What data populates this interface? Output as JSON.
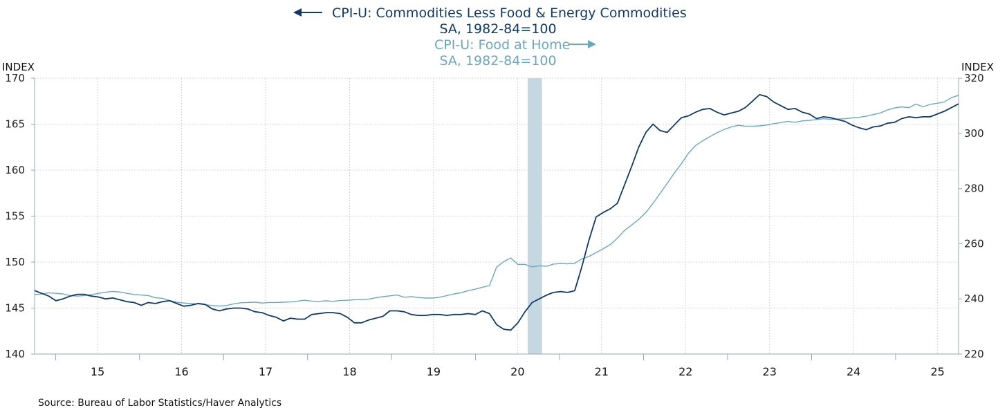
{
  "chart_data": {
    "type": "line",
    "colors": {
      "series1": "#0f3a68",
      "series2": "#6aa8c2",
      "recession": "#c5d8e2",
      "grid": "#d4d4d4",
      "axis": "#9aa4b0"
    },
    "legend": {
      "series1_line1": "CPI-U: Commodities Less Food & Energy Commodities",
      "series1_line2": "SA, 1982-84=100",
      "series2_line1": "CPI-U: Food at Home",
      "series2_line2": "SA, 1982-84=100"
    },
    "left_axis": {
      "unit": "INDEX",
      "min": 140,
      "max": 170,
      "ticks": [
        "140",
        "145",
        "150",
        "155",
        "160",
        "165",
        "170"
      ]
    },
    "right_axis": {
      "unit": "INDEX",
      "min": 220,
      "max": 320,
      "ticks": [
        "220",
        "240",
        "260",
        "280",
        "300",
        "320"
      ]
    },
    "x_axis": {
      "start": 2014.25,
      "end": 2025.25,
      "tick_labels": [
        "15",
        "16",
        "17",
        "18",
        "19",
        "20",
        "21",
        "22",
        "23",
        "24",
        "25"
      ]
    },
    "recession": {
      "start": 2020.12,
      "end": 2020.29
    },
    "series": [
      {
        "name": "CPI-U: Commodities Less Food & Energy Commodities",
        "axis": "left",
        "values": [
          146.9,
          146.6,
          146.3,
          145.8,
          146.0,
          146.3,
          146.5,
          146.5,
          146.3,
          146.2,
          146.0,
          146.1,
          145.9,
          145.7,
          145.6,
          145.3,
          145.6,
          145.5,
          145.7,
          145.8,
          145.5,
          145.2,
          145.3,
          145.5,
          145.4,
          144.9,
          144.7,
          144.9,
          145.0,
          145.0,
          144.9,
          144.6,
          144.5,
          144.2,
          144.0,
          143.6,
          143.9,
          143.8,
          143.8,
          144.3,
          144.4,
          144.5,
          144.5,
          144.4,
          144.0,
          143.4,
          143.4,
          143.7,
          143.9,
          144.1,
          144.7,
          144.7,
          144.6,
          144.3,
          144.2,
          144.2,
          144.3,
          144.3,
          144.2,
          144.3,
          144.3,
          144.4,
          144.3,
          144.7,
          144.4,
          143.2,
          142.7,
          142.6,
          143.4,
          144.6,
          145.6,
          146.0,
          146.4,
          146.7,
          146.8,
          146.7,
          146.9,
          149.5,
          152.4,
          154.9,
          155.4,
          155.8,
          156.4,
          158.4,
          160.4,
          162.5,
          164.1,
          165.0,
          164.3,
          164.1,
          164.9,
          165.7,
          165.9,
          166.3,
          166.6,
          166.7,
          166.3,
          166.0,
          166.2,
          166.4,
          166.8,
          167.5,
          168.2,
          168.0,
          167.4,
          167.0,
          166.6,
          166.7,
          166.3,
          166.1,
          165.6,
          165.8,
          165.7,
          165.5,
          165.3,
          164.9,
          164.6,
          164.4,
          164.7,
          164.8,
          165.1,
          165.2,
          165.6,
          165.8,
          165.7,
          165.8,
          165.8,
          166.1,
          166.4,
          166.8,
          167.2
        ]
      },
      {
        "name": "CPI-U: Food at Home",
        "axis": "right",
        "values": [
          241.5,
          241.8,
          242.2,
          242.0,
          241.8,
          241.2,
          241.0,
          241.2,
          241.5,
          242.0,
          242.4,
          242.7,
          242.5,
          242.0,
          241.6,
          241.4,
          241.2,
          240.4,
          240.2,
          239.4,
          238.8,
          238.5,
          238.3,
          238.2,
          237.9,
          237.6,
          237.4,
          237.6,
          238.2,
          238.6,
          238.7,
          238.8,
          238.5,
          238.7,
          238.7,
          238.8,
          238.9,
          239.2,
          239.5,
          239.2,
          239.1,
          239.3,
          239.1,
          239.4,
          239.5,
          239.7,
          239.7,
          239.9,
          240.4,
          240.8,
          241.1,
          241.4,
          240.6,
          240.8,
          240.5,
          240.3,
          240.3,
          240.6,
          241.2,
          241.8,
          242.2,
          243.0,
          243.5,
          244.2,
          244.8,
          251.5,
          253.5,
          254.8,
          252.5,
          252.5,
          251.6,
          252.0,
          251.8,
          252.6,
          252.8,
          252.7,
          252.9,
          254.5,
          255.4,
          256.8,
          258.2,
          259.7,
          262.0,
          264.8,
          266.8,
          268.8,
          271.3,
          274.6,
          278.2,
          281.8,
          285.6,
          289.0,
          292.8,
          295.6,
          297.3,
          298.8,
          300.2,
          301.4,
          302.3,
          302.9,
          302.6,
          302.6,
          302.7,
          303.0,
          303.5,
          303.9,
          304.3,
          304.0,
          304.5,
          304.7,
          305.0,
          305.3,
          305.1,
          305.2,
          305.3,
          305.6,
          305.8,
          306.2,
          306.8,
          307.4,
          308.5,
          309.2,
          309.6,
          309.3,
          310.6,
          309.6,
          310.5,
          310.9,
          311.4,
          312.9,
          313.8
        ]
      }
    ]
  },
  "footer": {
    "source": "Source:  Bureau of Labor Statistics/Haver Analytics"
  }
}
